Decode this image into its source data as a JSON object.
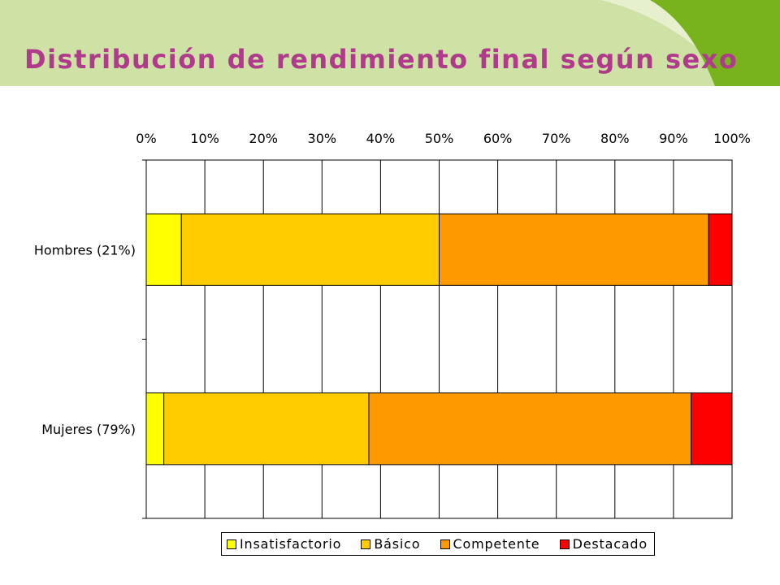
{
  "slide": {
    "title": "Distribución de rendimiento final según sexo",
    "title_color": "#b03a8c",
    "header_light": "#cfe2a5",
    "header_accent": "#78b21c"
  },
  "chart_data": {
    "type": "bar",
    "orientation": "horizontal",
    "stacked": "percent",
    "title": "",
    "xlabel": "",
    "ylabel": "",
    "xlim": [
      0,
      100
    ],
    "x_ticks": [
      "0%",
      "10%",
      "20%",
      "30%",
      "40%",
      "50%",
      "60%",
      "70%",
      "80%",
      "90%",
      "100%"
    ],
    "x_axis_position": "top",
    "grid": true,
    "legend_position": "bottom",
    "categories": [
      "Hombres (21%)",
      "Mujeres (79%)"
    ],
    "series": [
      {
        "name": "Insatisfactorio",
        "color": "#ffff00",
        "values": [
          6,
          3
        ]
      },
      {
        "name": "Básico",
        "color": "#ffcc00",
        "values": [
          44,
          35
        ]
      },
      {
        "name": "Competente",
        "color": "#ff9900",
        "values": [
          46,
          55
        ]
      },
      {
        "name": "Destacado",
        "color": "#ff0000",
        "values": [
          4,
          7
        ]
      }
    ]
  }
}
